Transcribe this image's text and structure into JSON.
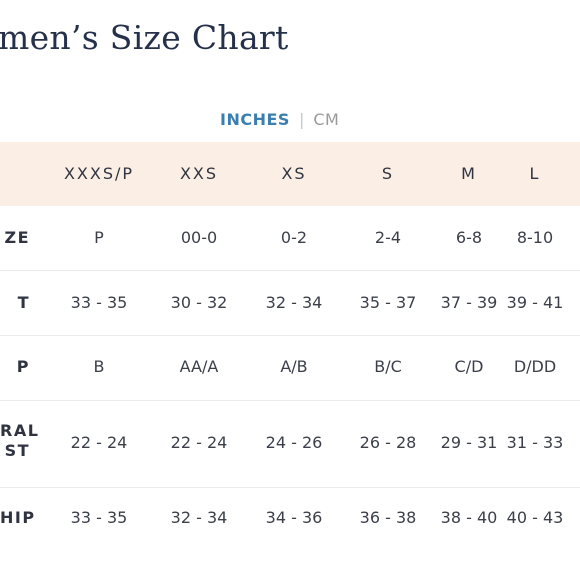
{
  "title": "men’s Size Chart",
  "units": {
    "active": "INCHES",
    "separator": "|",
    "inactive": "CM"
  },
  "columns": [
    "XXXS/P",
    "XXS",
    "XS",
    "S",
    "M",
    "L"
  ],
  "rows": [
    {
      "label": [
        "ZE"
      ],
      "values": [
        "P",
        "00-0",
        "0-2",
        "2-4",
        "6-8",
        "8-10"
      ]
    },
    {
      "label": [
        "T"
      ],
      "values": [
        "33 - 35",
        "30 - 32",
        "32 - 34",
        "35 - 37",
        "37 - 39",
        "39 - 41"
      ]
    },
    {
      "label": [
        "P"
      ],
      "values": [
        "B",
        "AA/A",
        "A/B",
        "B/C",
        "C/D",
        "D/DD"
      ]
    },
    {
      "label": [
        "RAL",
        "ST"
      ],
      "values": [
        "22 - 24",
        "22 - 24",
        "24 - 26",
        "26 - 28",
        "29 - 31",
        "31 - 33"
      ]
    },
    {
      "label": [
        "HIP"
      ],
      "values": [
        "33 - 35",
        "32 - 34",
        "34 - 36",
        "36 - 38",
        "38 - 40",
        "40 - 43"
      ]
    }
  ],
  "colors": {
    "header_bg": "#fbeee4",
    "accent": "#3b7fb0",
    "title": "#25304a"
  }
}
